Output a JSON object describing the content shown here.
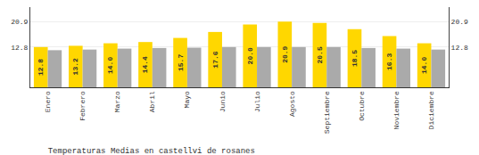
{
  "chart_data": {
    "type": "bar",
    "title": "Temperaturas Medias en castellvi de rosanes",
    "categories": [
      "Enero",
      "Febrero",
      "Marzo",
      "Abril",
      "Mayo",
      "Junio",
      "Julio",
      "Agosto",
      "Septiembre",
      "Octubre",
      "Noviembre",
      "Diciembre"
    ],
    "series": [
      {
        "color": "#FFD700",
        "values": [
          12.8,
          13.2,
          14.0,
          14.4,
          15.7,
          17.6,
          20.0,
          20.9,
          20.5,
          18.5,
          16.3,
          14.0
        ],
        "data_labels": true,
        "value_labels": [
          "12.8",
          "13.2",
          "14.0",
          "14.4",
          "15.7",
          "17.6",
          "20.0",
          "20.9",
          "20.5",
          "18.5",
          "16.3",
          "14.0"
        ]
      },
      {
        "color": "#AAAAAA",
        "values": [
          11.8,
          12.0,
          12.3,
          12.5,
          12.6,
          12.8,
          12.8,
          12.8,
          12.8,
          12.5,
          12.3,
          12.0
        ]
      }
    ],
    "ylim": [
      0,
      25.498
    ],
    "yticks": [
      12.8,
      20.9
    ],
    "y2lim": [
      0,
      25.498
    ],
    "y2ticks": [
      12.8,
      20.9
    ],
    "grid": true
  }
}
